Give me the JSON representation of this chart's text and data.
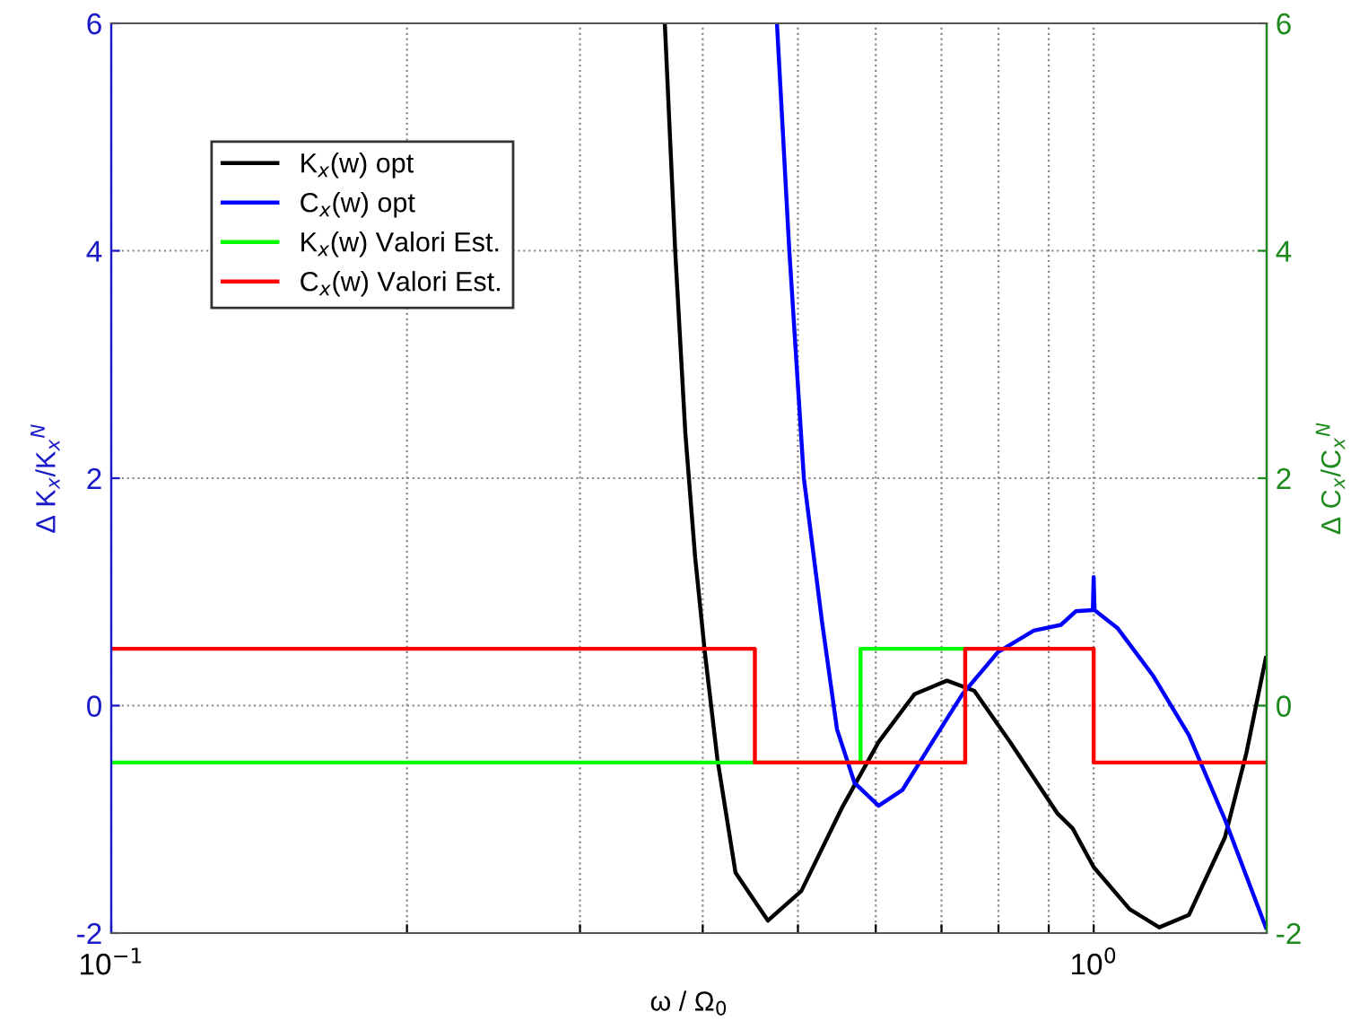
{
  "chart_data": {
    "type": "line",
    "xlabel": "ω / Ω$_{0}$",
    "ylabel": "Δ K$_{x}$/K$_{x}$$^{N}$",
    "y2label": "Δ C$_{x}$/C$_{x}$$^{N}$",
    "log": "x",
    "xlim": [
      0.1,
      1.5
    ],
    "xticks": [
      {
        "value": 0.1,
        "label": "10$^{−1}$"
      },
      {
        "value": 0.2,
        "label": null
      },
      {
        "value": 0.3,
        "label": null
      },
      {
        "value": 0.4,
        "label": null
      },
      {
        "value": 0.5,
        "label": null
      },
      {
        "value": 0.6,
        "label": null
      },
      {
        "value": 0.7,
        "label": null
      },
      {
        "value": 0.8,
        "label": null
      },
      {
        "value": 0.9,
        "label": null
      },
      {
        "value": 1,
        "label": "10$^{0}$"
      }
    ],
    "ylim": [
      -2,
      6
    ],
    "yticks": [
      -2,
      0,
      2,
      4,
      6
    ],
    "y2lim": [
      -2,
      6
    ],
    "y2ticks": [
      -2,
      0,
      2,
      4,
      6
    ],
    "grid": true,
    "legend": "top left",
    "marker": "none",
    "line_style": "solid",
    "series": [
      {
        "name": "K$_{x}$(w) opt",
        "color": "#000000",
        "x": [
          0.366,
          0.375,
          0.384,
          0.393,
          0.402,
          0.414,
          0.432,
          0.466,
          0.504,
          0.555,
          0.604,
          0.657,
          0.709,
          0.756,
          0.822,
          0.919,
          0.952,
          1.0,
          1.088,
          1.166,
          1.25,
          1.36,
          1.43,
          1.497
        ],
        "values": [
          6.0,
          4.0,
          2.4,
          1.3,
          0.47,
          -0.47,
          -1.47,
          -1.89,
          -1.63,
          -0.89,
          -0.32,
          0.1,
          0.22,
          0.13,
          -0.32,
          -0.95,
          -1.08,
          -1.42,
          -1.79,
          -1.95,
          -1.84,
          -1.16,
          -0.42,
          0.42
        ]
      },
      {
        "name": "C$_{x}$(w) opt",
        "color": "#0000ff",
        "x": [
          0.476,
          0.49,
          0.507,
          0.529,
          0.548,
          0.571,
          0.604,
          0.639,
          0.685,
          0.735,
          0.799,
          0.869,
          0.926,
          0.959,
          0.998,
          1.0,
          1.002,
          1.058,
          1.15,
          1.25,
          1.36,
          1.497
        ],
        "values": [
          6.0,
          4.0,
          2.0,
          0.74,
          -0.21,
          -0.68,
          -0.88,
          -0.74,
          -0.32,
          0.1,
          0.47,
          0.66,
          0.71,
          0.83,
          0.84,
          1.13,
          0.84,
          0.68,
          0.26,
          -0.26,
          -1.0,
          -1.95
        ]
      },
      {
        "name": "K$_{x}$(w) Valori Est.",
        "color": "#00ff00",
        "x": [
          0.1,
          0.579,
          0.579,
          0.74
        ],
        "values": [
          -0.5,
          -0.5,
          0.5,
          0.5
        ]
      },
      {
        "name": "C$_{x}$(w) Valori Est.",
        "color": "#ff0000",
        "x": [
          0.1,
          0.452,
          0.452,
          0.74,
          0.74,
          1.0,
          1.0,
          1.5
        ],
        "values": [
          0.5,
          0.5,
          -0.5,
          -0.5,
          0.5,
          0.5,
          -0.5,
          -0.5
        ]
      }
    ]
  }
}
